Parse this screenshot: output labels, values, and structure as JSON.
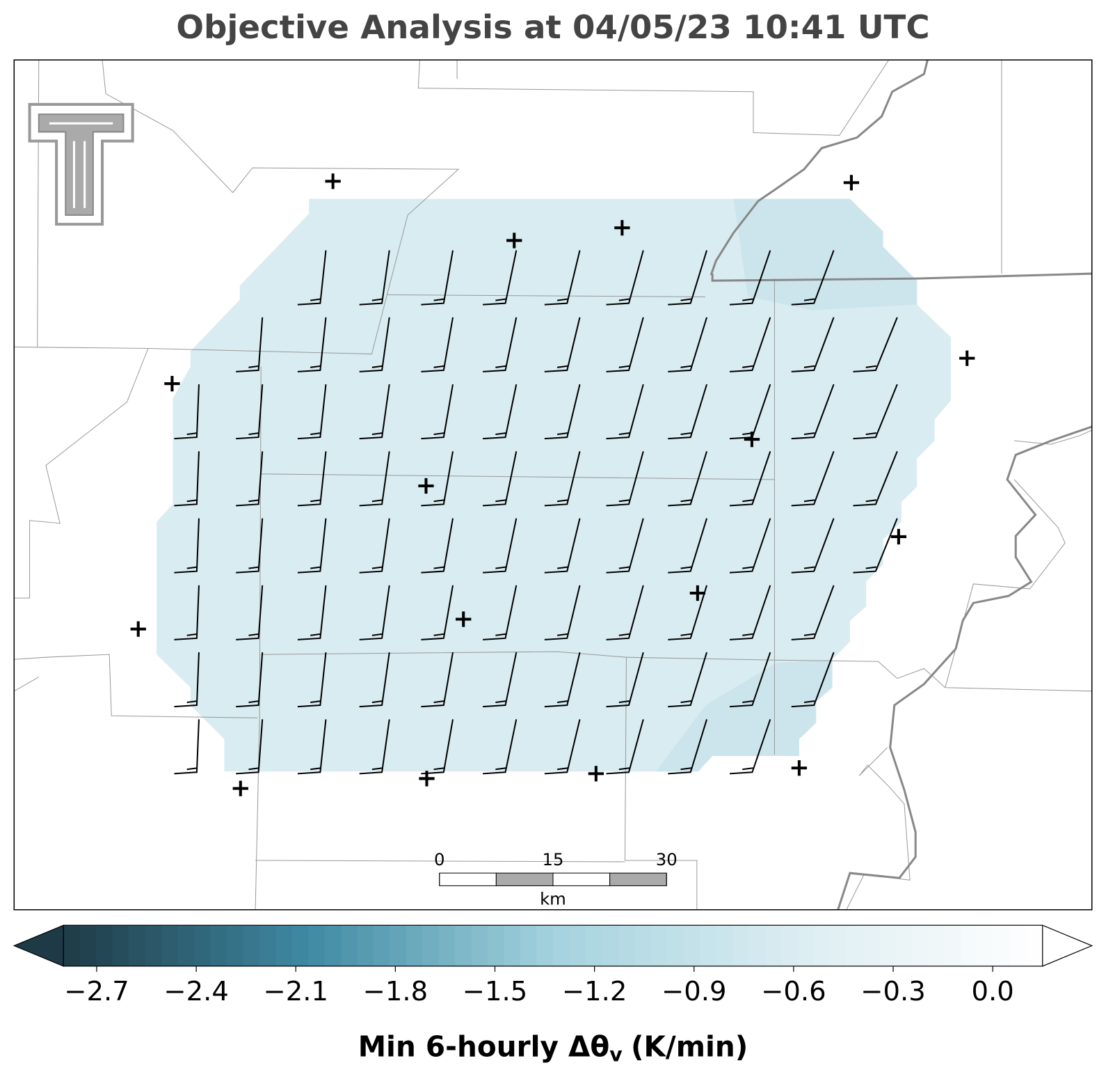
{
  "title": "Objective Analysis at 04/05/23 10:41 UTC",
  "colorbar": {
    "label": "Min 6-hourly Δθ",
    "label_subscript": "v",
    "label_suffix": "(K/min)",
    "clim": [
      -2.8,
      0.15
    ],
    "colors": [
      "#1f3a47",
      "#3f8aa3",
      "#a4d2de",
      "#dcedf2",
      "#ffffff"
    ],
    "ticks": [
      {
        "value": -2.7,
        "label": "−2.7"
      },
      {
        "value": -2.4,
        "label": "−2.4"
      },
      {
        "value": -2.1,
        "label": "−2.1"
      },
      {
        "value": -1.8,
        "label": "−1.8"
      },
      {
        "value": -1.5,
        "label": "−1.5"
      },
      {
        "value": -1.2,
        "label": "−1.2"
      },
      {
        "value": -0.9,
        "label": "−0.9"
      },
      {
        "value": -0.6,
        "label": "−0.6"
      },
      {
        "value": -0.3,
        "label": "−0.3"
      },
      {
        "value": 0.0,
        "label": "0.0"
      }
    ]
  },
  "scale_bar": {
    "ticks": [
      0,
      15,
      30
    ],
    "unit": "km"
  }
}
